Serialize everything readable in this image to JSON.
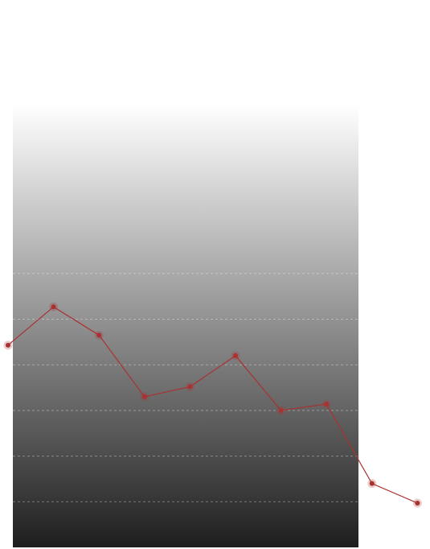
{
  "chart_data": {
    "type": "line",
    "categories": [
      null,
      null,
      null,
      null,
      null,
      null,
      null,
      null,
      null,
      null
    ],
    "series": [
      {
        "color": "#a83232",
        "values": [
          4.43,
          5.27,
          4.65,
          3.3,
          3.52,
          4.2,
          3.0,
          3.14,
          1.4,
          0.97
        ]
      }
    ],
    "ylim": [
      0,
      9.7
    ],
    "yticks": [
      1,
      2,
      3,
      4,
      5,
      6
    ],
    "grid": true
  }
}
